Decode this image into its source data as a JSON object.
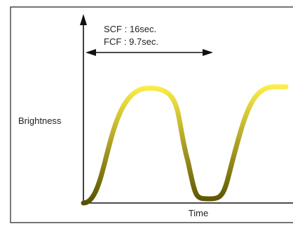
{
  "diagram": {
    "annotation": {
      "line1": "SCF : 16sec.",
      "line2": "FCF : 9.7sec."
    },
    "y_axis_label": "Brightness",
    "x_axis_label": "Time",
    "colors": {
      "border": "#222222",
      "axis": "#111111",
      "curve_top": "#FFF04A",
      "curve_bottom": "#5A5200",
      "text": "#222222"
    }
  }
}
